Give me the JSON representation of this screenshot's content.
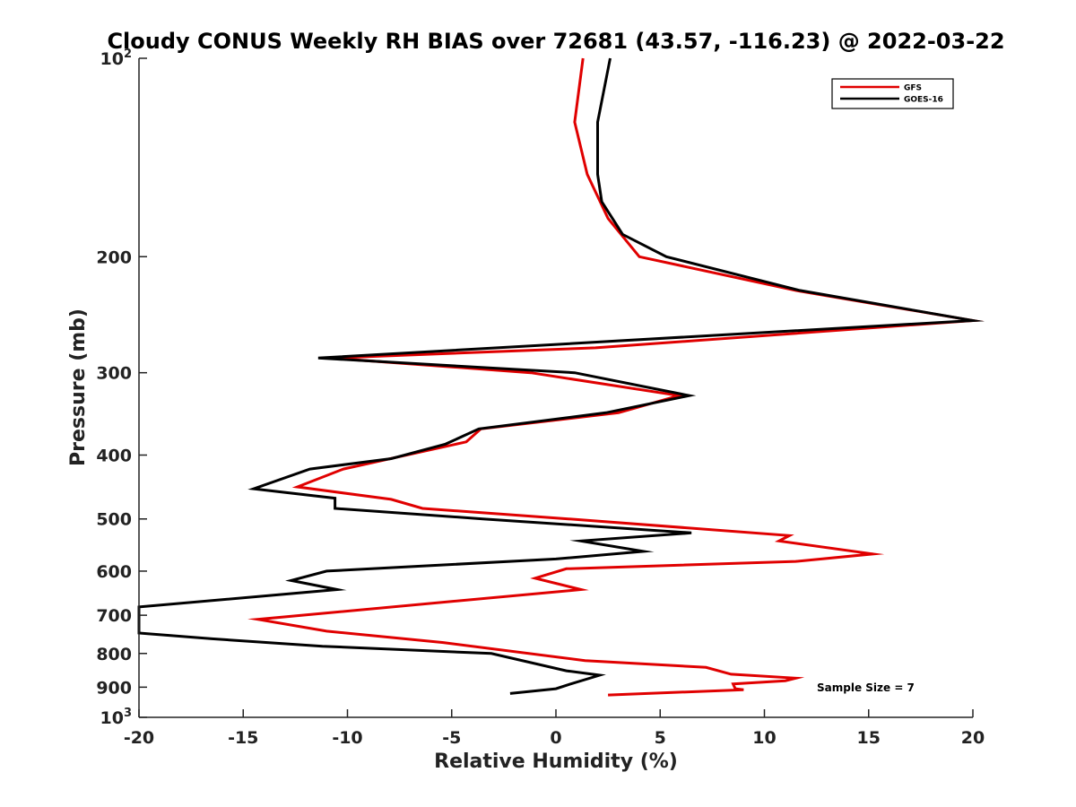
{
  "chart_data": {
    "type": "line",
    "title": "Cloudy CONUS Weekly RH BIAS over 72681 (43.57, -116.23) @ 2022-03-22",
    "xlabel": "Relative Humidity (%)",
    "ylabel": "Pressure (mb)",
    "xlim": [
      -20,
      20
    ],
    "ylim": [
      100,
      1000
    ],
    "y_scale": "log",
    "y_reversed": true,
    "grid": false,
    "legend_position": "top-right",
    "x_ticks": [
      -20,
      -15,
      -10,
      -5,
      0,
      5,
      10,
      15,
      20
    ],
    "x_tick_labels": [
      "-20",
      "-15",
      "-10",
      "-5",
      "0",
      "5",
      "10",
      "15",
      "20"
    ],
    "y_ticks": [
      100,
      200,
      300,
      400,
      500,
      600,
      700,
      800,
      900,
      1000
    ],
    "y_tick_labels": [
      {
        "base": "10",
        "exp": "2"
      },
      {
        "text": "200"
      },
      {
        "text": "300"
      },
      {
        "text": "400"
      },
      {
        "text": "500"
      },
      {
        "text": "600"
      },
      {
        "text": "700"
      },
      {
        "text": "800"
      },
      {
        "text": "900"
      },
      {
        "base": "10",
        "exp": "3"
      }
    ],
    "annotation": "Sample Size = 7",
    "series": [
      {
        "name": "GFS",
        "color": "#e00000",
        "points": [
          [
            1.3,
            100
          ],
          [
            0.9,
            125
          ],
          [
            1.5,
            150
          ],
          [
            2.5,
            175
          ],
          [
            4,
            200
          ],
          [
            11.5,
            225
          ],
          [
            20,
            250
          ],
          [
            1.9,
            275
          ],
          [
            -10.8,
            285
          ],
          [
            -1.2,
            300
          ],
          [
            5.9,
            325
          ],
          [
            3,
            345
          ],
          [
            -3.6,
            365
          ],
          [
            -4.3,
            382
          ],
          [
            -10.2,
            420
          ],
          [
            -12.4,
            447
          ],
          [
            -7.9,
            467
          ],
          [
            -6.4,
            482
          ],
          [
            0.6,
            500
          ],
          [
            11.2,
            530
          ],
          [
            10.7,
            540
          ],
          [
            15.2,
            565
          ],
          [
            11.5,
            580
          ],
          [
            0.5,
            595
          ],
          [
            -1,
            615
          ],
          [
            1.2,
            640
          ],
          [
            -14.3,
            710
          ],
          [
            -11,
            740
          ],
          [
            -5.4,
            770
          ],
          [
            1.4,
            820
          ],
          [
            7.2,
            840
          ],
          [
            8.4,
            860
          ],
          [
            11.5,
            872
          ],
          [
            11,
            880
          ],
          [
            8.5,
            890
          ],
          [
            8.6,
            905
          ],
          [
            9,
            908
          ],
          [
            2.5,
            925
          ]
        ]
      },
      {
        "name": "GOES-16",
        "color": "#000000",
        "points": [
          [
            2.6,
            100
          ],
          [
            2,
            125
          ],
          [
            2,
            150
          ],
          [
            2.2,
            165
          ],
          [
            3.2,
            185
          ],
          [
            5.3,
            200
          ],
          [
            11.7,
            225
          ],
          [
            20,
            250
          ],
          [
            -11.4,
            285
          ],
          [
            0.9,
            300
          ],
          [
            6.4,
            325
          ],
          [
            2.4,
            345
          ],
          [
            -3.7,
            365
          ],
          [
            -5.3,
            385
          ],
          [
            -7.9,
            405
          ],
          [
            -11.8,
            420
          ],
          [
            -14.5,
            450
          ],
          [
            -10.6,
            465
          ],
          [
            -10.6,
            482
          ],
          [
            -3.5,
            500
          ],
          [
            6.5,
            525
          ],
          [
            1.2,
            540
          ],
          [
            4.2,
            560
          ],
          [
            0,
            575
          ],
          [
            -11,
            600
          ],
          [
            -12.7,
            620
          ],
          [
            -10.5,
            640
          ],
          [
            -20,
            680
          ],
          [
            -20,
            745
          ],
          [
            -16.5,
            760
          ],
          [
            -11.2,
            780
          ],
          [
            -3.1,
            800
          ],
          [
            0.5,
            850
          ],
          [
            2.1,
            863
          ],
          [
            0.7,
            890
          ],
          [
            0,
            905
          ],
          [
            -2.2,
            920
          ]
        ]
      }
    ]
  }
}
